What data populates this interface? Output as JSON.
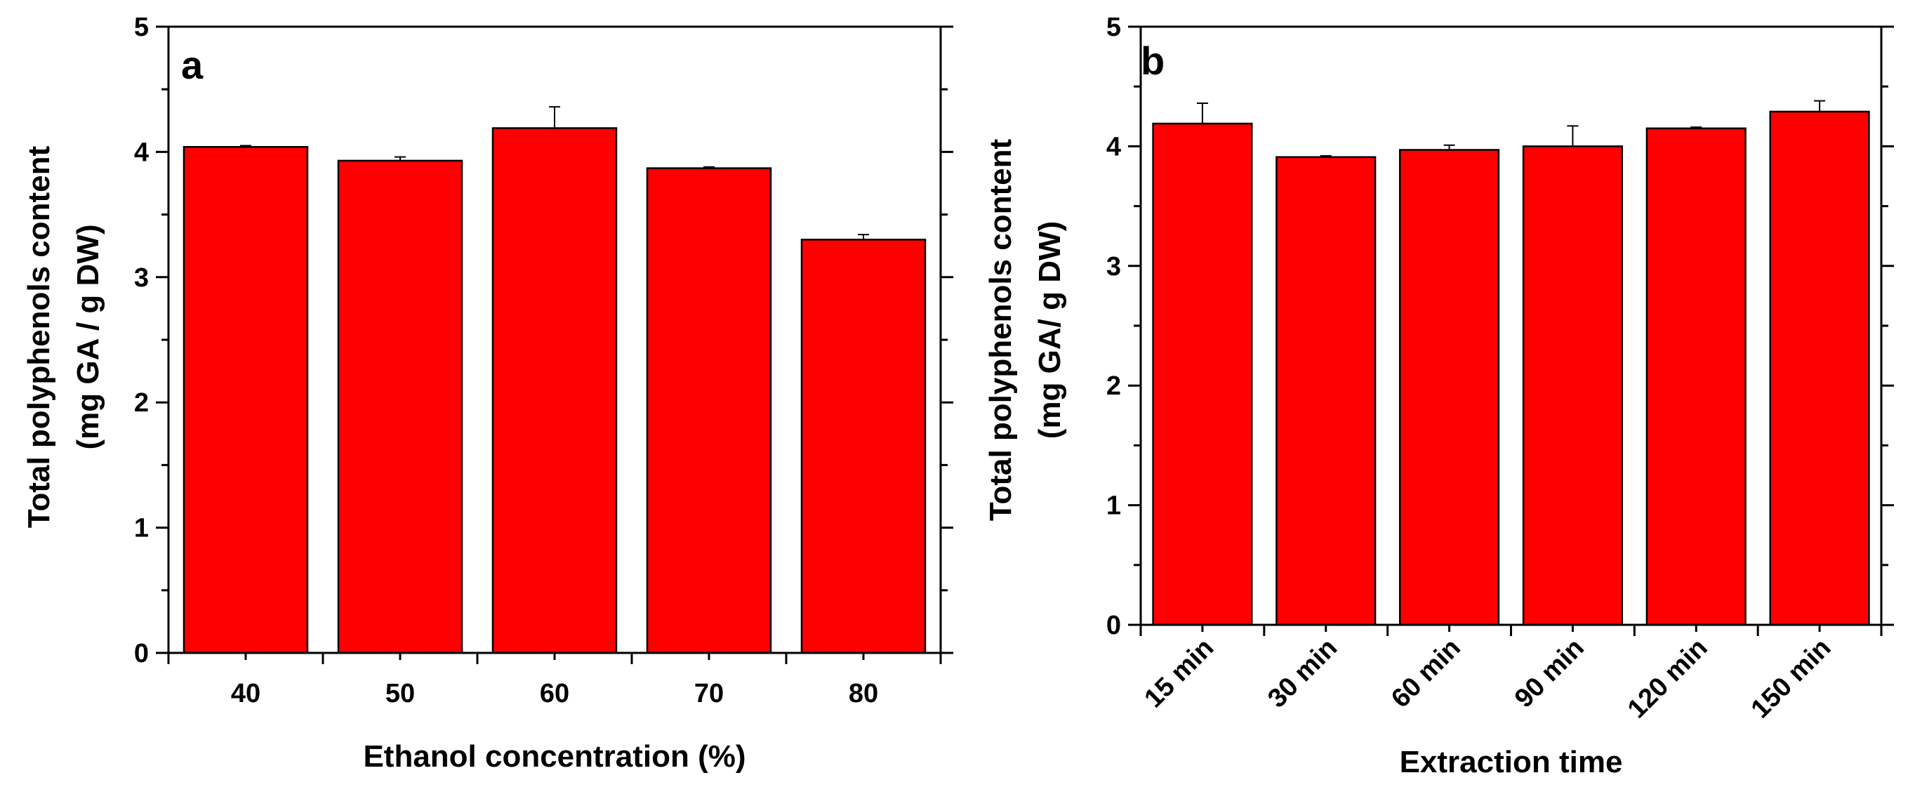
{
  "chart_data": [
    {
      "panel": "a",
      "type": "bar",
      "categories": [
        "40",
        "50",
        "60",
        "70",
        "80"
      ],
      "values": [
        4.04,
        3.93,
        4.19,
        3.87,
        3.3
      ],
      "errors": [
        0.01,
        0.03,
        0.17,
        0.01,
        0.04
      ],
      "xlabel": "Ethanol concentration (%)",
      "ylabel_line1": "Total polyphenols content",
      "ylabel_line2": "(mg GA / g DW)",
      "ylim": [
        0,
        5
      ],
      "yticks": [
        "0",
        "1",
        "2",
        "3",
        "4",
        "5"
      ],
      "bar_color": "#ff0000",
      "category_rotation": 0
    },
    {
      "panel": "b",
      "type": "bar",
      "categories": [
        "15 min",
        "30 min",
        "60 min",
        "90 min",
        "120 min",
        "150 min"
      ],
      "values": [
        4.19,
        3.91,
        3.97,
        4.0,
        4.15,
        4.29
      ],
      "errors": [
        0.17,
        0.01,
        0.04,
        0.17,
        0.01,
        0.09
      ],
      "xlabel": "Extraction time",
      "ylabel_line1": "Total polyphenols content",
      "ylabel_line2": "(mg GA/ g DW)",
      "ylim": [
        0,
        5
      ],
      "yticks": [
        "0",
        "1",
        "2",
        "3",
        "4",
        "5"
      ],
      "bar_color": "#ff0000",
      "category_rotation": -45
    }
  ]
}
